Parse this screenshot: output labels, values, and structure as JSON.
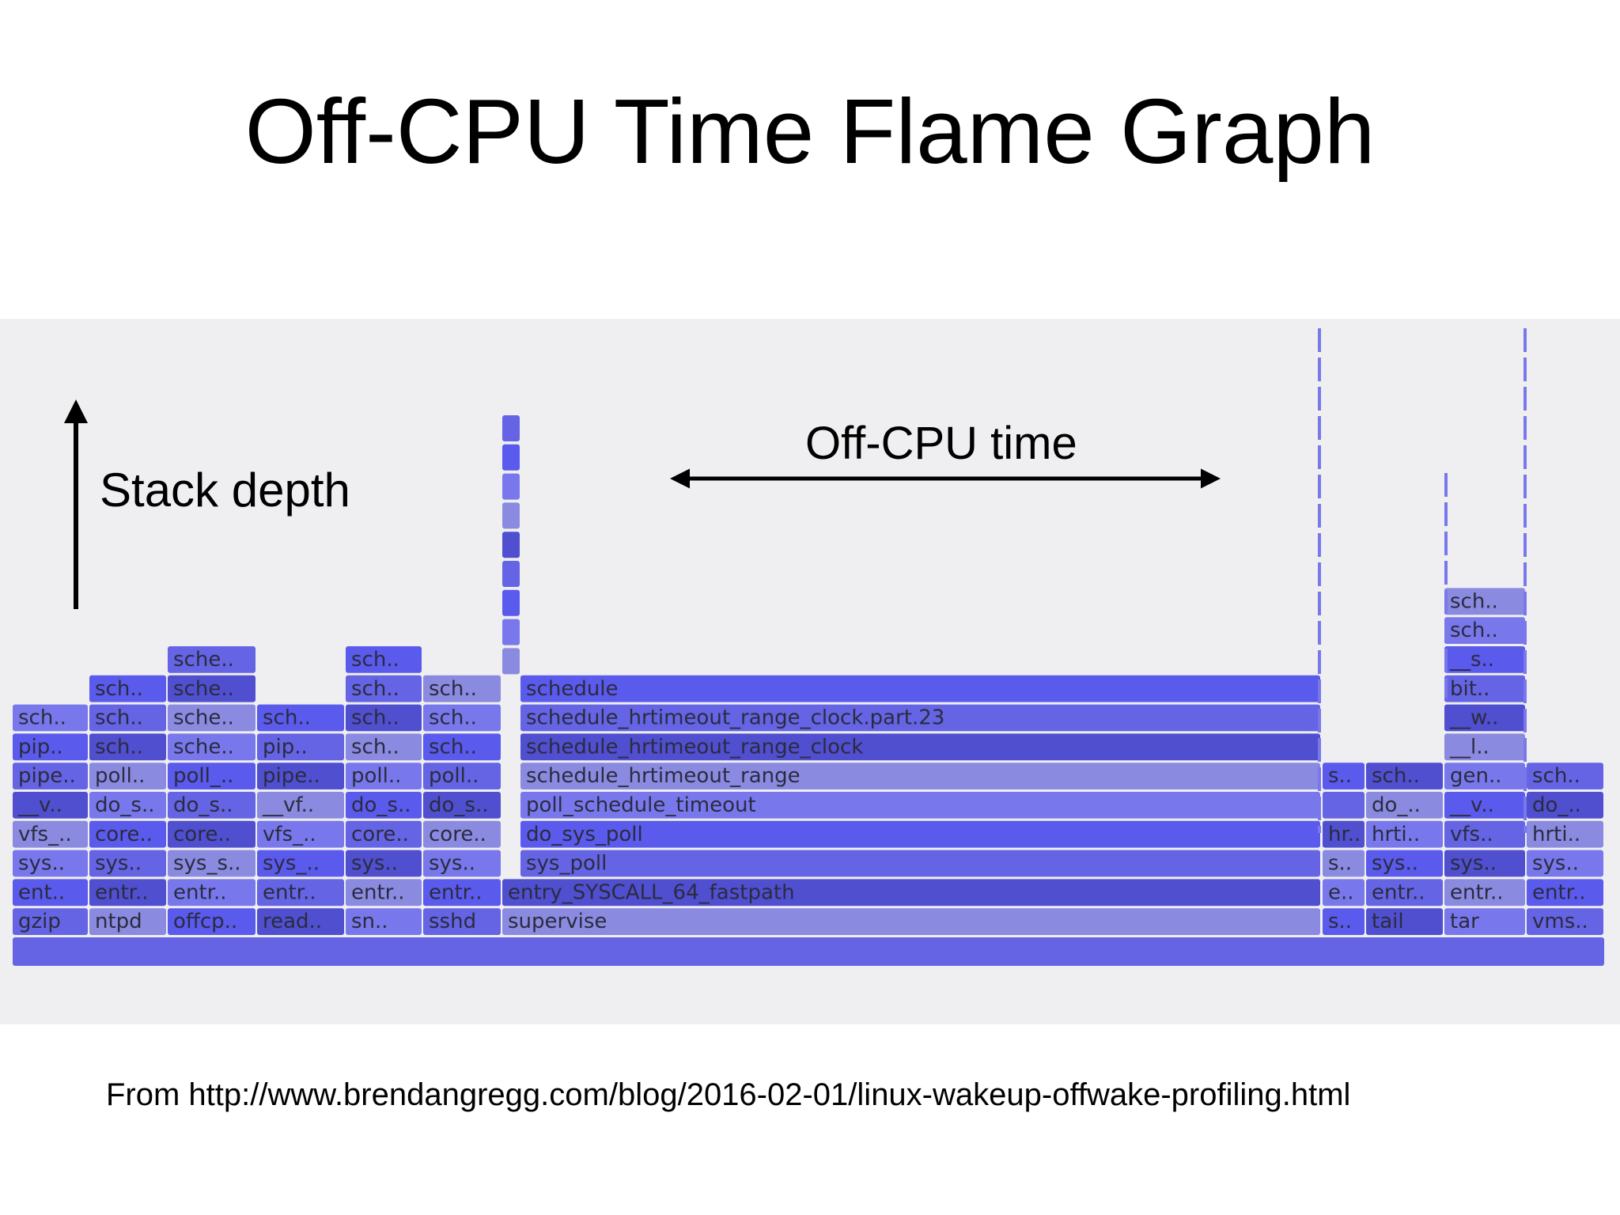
{
  "title": "Off-CPU Time Flame Graph",
  "annotations": {
    "stack_depth": "Stack depth",
    "off_cpu_time": "Off-CPU time"
  },
  "source": "From http://www.brendangregg.com/blog/2016-02-01/linux-wakeup-offwake-profiling.html",
  "colors": {
    "background": "#ffffff",
    "panel": "#efeff1",
    "frame_a": "#6464e4",
    "frame_b": "#5a5aec",
    "frame_c": "#7878ec",
    "frame_d": "#8a8ae0",
    "frame_e": "#4f4fd0"
  },
  "flame_graph": {
    "columns": [
      {
        "process": "gzip",
        "frames": [
          "gzip",
          "ent..",
          "sys..",
          "vfs_..",
          "__v..",
          "pipe..",
          "pip..",
          "sch.."
        ]
      },
      {
        "process": "ntpd",
        "frames": [
          "ntpd",
          "entr..",
          "sys..",
          "core..",
          "do_s..",
          "poll..",
          "sch..",
          "sch..",
          "sch.."
        ]
      },
      {
        "process": "offcp..",
        "frames": [
          "offcp..",
          "entr..",
          "sys_s..",
          "core..",
          "do_s..",
          "poll_..",
          "sche..",
          "sche..",
          "sche..",
          "sche.."
        ]
      },
      {
        "process": "read..",
        "frames": [
          "read..",
          "entr..",
          "sys_..",
          "vfs_..",
          "__vf..",
          "pipe..",
          "pip..",
          "sch.."
        ]
      },
      {
        "process": "sn..",
        "frames": [
          "sn..",
          "entr..",
          "sys..",
          "core..",
          "do_s..",
          "poll..",
          "sch..",
          "sch..",
          "sch..",
          "sch.."
        ]
      },
      {
        "process": "sshd",
        "frames": [
          "sshd",
          "entr..",
          "sys..",
          "core..",
          "do_s..",
          "poll..",
          "sch..",
          "sch..",
          "sch.."
        ]
      },
      {
        "process": "supervise",
        "frames": [
          "supervise",
          "entry_SYSCALL_64_fastpath",
          "sys_poll",
          "do_sys_poll",
          "poll_schedule_timeout",
          "schedule_hrtimeout_range",
          "schedule_hrtimeout_range_clock",
          "schedule_hrtimeout_range_clock.part.23",
          "schedule"
        ]
      },
      {
        "process": "s..",
        "frames": [
          "s..",
          "e..",
          "s..",
          "hr..",
          "",
          "s.."
        ]
      },
      {
        "process": "tail",
        "frames": [
          "tail",
          "entr..",
          "sys..",
          "hrti..",
          "do_..",
          "sch.."
        ]
      },
      {
        "process": "tar",
        "frames": [
          "tar",
          "entr..",
          "sys..",
          "vfs..",
          "__v..",
          "gen..",
          "__l..",
          "__w..",
          "bit..",
          "__s..",
          "sch..",
          "sch.."
        ]
      },
      {
        "process": "vms..",
        "frames": [
          "vms..",
          "entr..",
          "sys..",
          "hrti..",
          "do_..",
          "sch.."
        ]
      }
    ]
  }
}
